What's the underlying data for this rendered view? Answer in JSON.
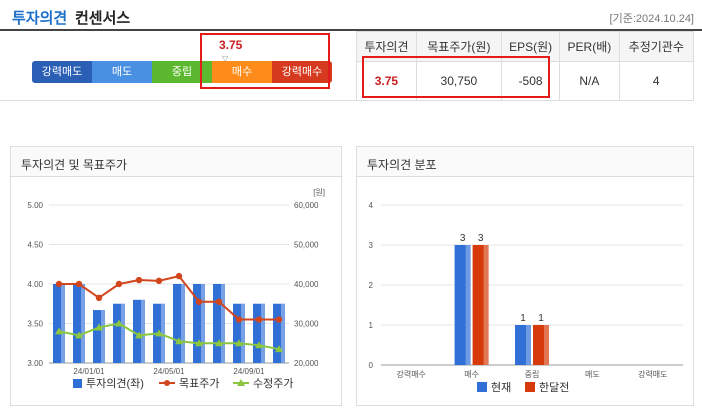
{
  "header": {
    "title": "투자의견",
    "subtitle": "컨센서스",
    "date": "[기준:2024.10.24]"
  },
  "scale": {
    "segments": [
      {
        "label": "강력매도",
        "color": "#2a5fb5"
      },
      {
        "label": "매도",
        "color": "#4a90e2"
      },
      {
        "label": "중립",
        "color": "#5cb82e"
      },
      {
        "label": "매수",
        "color": "#ff8c1a"
      },
      {
        "label": "강력매수",
        "color": "#d63a1e"
      }
    ],
    "current_value": "3.75"
  },
  "consensus_table": {
    "headers": [
      "투자의견",
      "목표주가(원)",
      "EPS(원)",
      "PER(배)",
      "추정기관수"
    ],
    "values": [
      "3.75",
      "30,750",
      "-508",
      "N/A",
      "4"
    ]
  },
  "left_panel": {
    "title": "투자의견 및 목표주가"
  },
  "right_panel": {
    "title": "투자의견 분포"
  },
  "chart_data": [
    {
      "type": "bar",
      "title": "투자의견 및 목표주가",
      "y_left_ticks": [
        "5.00",
        "4.50",
        "4.00",
        "3.50",
        "3.00"
      ],
      "y_left_lim": [
        3.0,
        5.0
      ],
      "y_right_ticks": [
        "60,000",
        "50,000",
        "40,000",
        "30,000",
        "20,000"
      ],
      "y_right_lim": [
        20000,
        60000
      ],
      "y_right_unit": "[원]",
      "x_ticks": [
        {
          "label": "24/01/01",
          "index": 1.5
        },
        {
          "label": "24/05/01",
          "index": 5.5
        },
        {
          "label": "24/09/01",
          "index": 9.5
        }
      ],
      "series": [
        {
          "name": "투자의견(좌)",
          "type": "bar",
          "color": "#2f6fd6",
          "values": [
            4.0,
            4.0,
            3.67,
            3.75,
            3.8,
            3.75,
            4.0,
            4.0,
            4.0,
            3.75,
            3.75,
            3.75
          ]
        },
        {
          "name": "목표주가",
          "type": "line",
          "color": "#d2461e",
          "values": [
            40000,
            40000,
            36500,
            40000,
            41000,
            40800,
            42000,
            35500,
            35500,
            31000,
            31000,
            31000
          ]
        },
        {
          "name": "수정주가",
          "type": "line",
          "color": "#8cc63f",
          "values": [
            28000,
            27000,
            29000,
            30000,
            27000,
            27500,
            25500,
            25000,
            25000,
            25000,
            24500,
            23500
          ]
        }
      ]
    },
    {
      "type": "bar",
      "title": "투자의견 분포",
      "categories": [
        "강력매수",
        "매수",
        "중립",
        "매도",
        "강력매도"
      ],
      "ylim": [
        0,
        4
      ],
      "y_ticks": [
        "4",
        "3",
        "2",
        "1",
        "0"
      ],
      "series": [
        {
          "name": "현재",
          "color": "#2f6fd6",
          "values": [
            0,
            3,
            1,
            0,
            0
          ]
        },
        {
          "name": "한달전",
          "color": "#d63a0a",
          "values": [
            0,
            3,
            1,
            0,
            0
          ]
        }
      ]
    }
  ]
}
